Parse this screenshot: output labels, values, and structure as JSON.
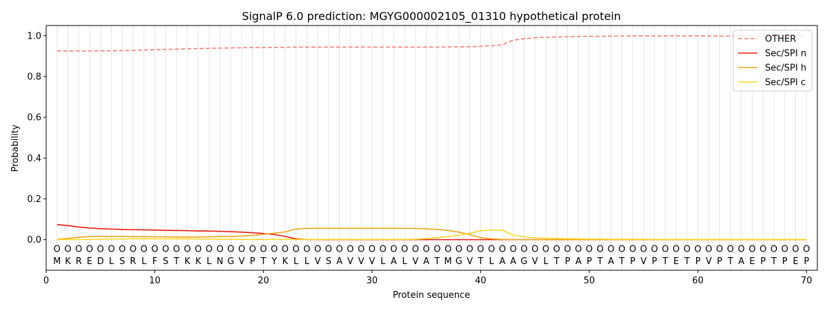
{
  "chart_data": {
    "type": "line",
    "title": "SignalP 6.0 prediction: MGYG000002105_01310 hypothetical protein",
    "xlabel": "Protein sequence",
    "ylabel": "Probability",
    "xlim": [
      0,
      71
    ],
    "ylim": [
      -0.15,
      1.05
    ],
    "xticks": [
      0,
      10,
      20,
      30,
      40,
      50,
      60,
      70
    ],
    "yticks": [
      0.0,
      0.2,
      0.4,
      0.6,
      0.8,
      1.0
    ],
    "grid": "vertical lines at each residue",
    "legend_position": "top-right",
    "sequence": [
      "M",
      "K",
      "R",
      "E",
      "D",
      "L",
      "S",
      "R",
      "L",
      "F",
      "S",
      "T",
      "K",
      "K",
      "L",
      "N",
      "G",
      "V",
      "P",
      "T",
      "Y",
      "K",
      "L",
      "L",
      "V",
      "S",
      "A",
      "V",
      "V",
      "V",
      "L",
      "A",
      "L",
      "V",
      "A",
      "T",
      "M",
      "G",
      "V",
      "T",
      "L",
      "A",
      "A",
      "G",
      "V",
      "L",
      "T",
      "P",
      "A",
      "P",
      "T",
      "A",
      "T",
      "P",
      "V",
      "P",
      "T",
      "E",
      "T",
      "P",
      "V",
      "P",
      "T",
      "A",
      "E",
      "P",
      "T",
      "P",
      "E",
      "P"
    ],
    "region_marker": "O",
    "x": [
      1,
      2,
      3,
      4,
      5,
      6,
      7,
      8,
      9,
      10,
      11,
      12,
      13,
      14,
      15,
      16,
      17,
      18,
      19,
      20,
      21,
      22,
      23,
      24,
      25,
      26,
      27,
      28,
      29,
      30,
      31,
      32,
      33,
      34,
      35,
      36,
      37,
      38,
      39,
      40,
      41,
      42,
      43,
      44,
      45,
      46,
      47,
      48,
      49,
      50,
      51,
      52,
      53,
      54,
      55,
      56,
      57,
      58,
      59,
      60,
      61,
      62,
      63,
      64,
      65,
      66,
      67,
      68,
      69,
      70
    ],
    "series": [
      {
        "name": "OTHER",
        "color": "#f08080",
        "dash": true,
        "values": [
          0.925,
          0.925,
          0.925,
          0.925,
          0.926,
          0.926,
          0.927,
          0.928,
          0.93,
          0.931,
          0.933,
          0.934,
          0.936,
          0.937,
          0.938,
          0.939,
          0.94,
          0.941,
          0.942,
          0.942,
          0.943,
          0.943,
          0.944,
          0.944,
          0.944,
          0.944,
          0.944,
          0.944,
          0.944,
          0.944,
          0.944,
          0.944,
          0.944,
          0.944,
          0.944,
          0.944,
          0.945,
          0.945,
          0.946,
          0.948,
          0.951,
          0.955,
          0.978,
          0.985,
          0.99,
          0.992,
          0.994,
          0.995,
          0.996,
          0.997,
          0.997,
          0.998,
          0.998,
          0.999,
          0.999,
          0.999,
          0.999,
          0.999,
          0.999,
          0.999,
          0.999,
          0.998,
          0.998,
          0.998,
          0.998,
          0.998,
          0.998,
          0.998,
          0.998,
          0.998
        ]
      },
      {
        "name": "Sec/SPI n",
        "color": "#e8180c",
        "dash": false,
        "values": [
          0.074,
          0.069,
          0.062,
          0.057,
          0.054,
          0.052,
          0.05,
          0.049,
          0.048,
          0.047,
          0.046,
          0.045,
          0.044,
          0.043,
          0.042,
          0.041,
          0.039,
          0.037,
          0.034,
          0.03,
          0.025,
          0.016,
          0.004,
          0.001,
          0.0,
          0.0,
          0.0,
          0.0,
          0.0,
          0.0,
          0.0,
          0.0,
          0.0,
          0.0,
          0.0,
          0.0,
          0.0,
          0.0,
          0.0,
          0.0,
          0.0,
          0.0,
          0.0,
          0.0,
          0.0,
          0.0,
          0.0,
          0.0,
          0.0,
          0.0,
          0.0,
          0.0,
          0.0,
          0.0,
          0.0,
          0.0,
          0.0,
          0.0,
          0.0,
          0.0,
          0.0,
          0.0,
          0.0,
          0.0,
          0.0,
          0.0,
          0.0,
          0.0,
          0.0,
          0.0
        ]
      },
      {
        "name": "Sec/SPI h",
        "color": "#f2a516",
        "dash": false,
        "values": [
          0.001,
          0.006,
          0.012,
          0.015,
          0.016,
          0.016,
          0.016,
          0.015,
          0.015,
          0.014,
          0.014,
          0.013,
          0.013,
          0.013,
          0.014,
          0.015,
          0.016,
          0.018,
          0.021,
          0.026,
          0.032,
          0.038,
          0.052,
          0.055,
          0.056,
          0.056,
          0.056,
          0.056,
          0.056,
          0.056,
          0.056,
          0.056,
          0.055,
          0.055,
          0.053,
          0.05,
          0.045,
          0.037,
          0.025,
          0.01,
          0.004,
          0.001,
          0.0,
          0.0,
          0.0,
          0.0,
          0.0,
          0.0,
          0.0,
          0.0,
          0.0,
          0.0,
          0.0,
          0.0,
          0.0,
          0.0,
          0.0,
          0.0,
          0.0,
          0.0,
          0.0,
          0.0,
          0.0,
          0.0,
          0.0,
          0.0,
          0.0,
          0.0,
          0.0,
          0.0
        ]
      },
      {
        "name": "Sec/SPI c",
        "color": "#fdd827",
        "dash": false,
        "values": [
          0.0,
          0.0,
          0.001,
          0.001,
          0.002,
          0.003,
          0.003,
          0.004,
          0.004,
          0.004,
          0.004,
          0.004,
          0.004,
          0.003,
          0.003,
          0.002,
          0.002,
          0.001,
          0.001,
          0.001,
          0.001,
          0.001,
          0.001,
          0.001,
          0.001,
          0.001,
          0.001,
          0.001,
          0.001,
          0.001,
          0.001,
          0.001,
          0.001,
          0.002,
          0.005,
          0.01,
          0.015,
          0.022,
          0.032,
          0.044,
          0.047,
          0.047,
          0.022,
          0.014,
          0.009,
          0.007,
          0.006,
          0.005,
          0.004,
          0.003,
          0.003,
          0.002,
          0.002,
          0.002,
          0.002,
          0.001,
          0.001,
          0.001,
          0.001,
          0.001,
          0.001,
          0.001,
          0.001,
          0.001,
          0.001,
          0.001,
          0.001,
          0.001,
          0.001,
          0.001
        ]
      }
    ]
  }
}
